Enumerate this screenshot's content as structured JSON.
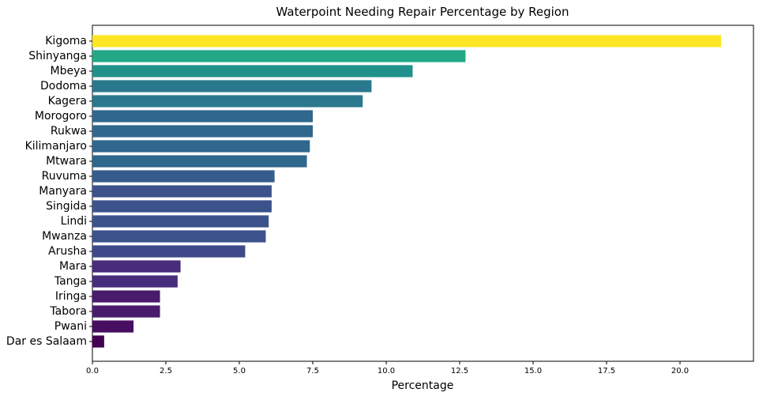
{
  "chart_data": {
    "type": "bar",
    "orientation": "horizontal",
    "title": "Waterpoint Needing Repair Percentage by Region",
    "xlabel": "Percentage",
    "ylabel": "",
    "xlim": [
      0,
      22.5
    ],
    "xticks": [
      "0.0",
      "2.5",
      "5.0",
      "7.5",
      "10.0",
      "12.5",
      "15.0",
      "17.5",
      "20.0"
    ],
    "grid": false,
    "colormap": "viridis",
    "categories": [
      "Kigoma",
      "Shinyanga",
      "Mbeya",
      "Dodoma",
      "Kagera",
      "Morogoro",
      "Rukwa",
      "Kilimanjaro",
      "Mtwara",
      "Ruvuma",
      "Manyara",
      "Singida",
      "Lindi",
      "Mwanza",
      "Arusha",
      "Mara",
      "Tanga",
      "Iringa",
      "Tabora",
      "Pwani",
      "Dar es Salaam"
    ],
    "values": [
      21.4,
      12.7,
      10.9,
      9.5,
      9.2,
      7.5,
      7.5,
      7.4,
      7.3,
      6.2,
      6.1,
      6.1,
      6.0,
      5.9,
      5.2,
      3.0,
      2.9,
      2.3,
      2.3,
      1.4,
      0.4
    ],
    "colors": [
      "#fde725",
      "#22a884",
      "#21918c",
      "#2a788e",
      "#2a788e",
      "#30678d",
      "#30678d",
      "#30678d",
      "#30678d",
      "#365c8d",
      "#3b528b",
      "#3b528b",
      "#3b528b",
      "#3b528b",
      "#3e4989",
      "#472d7b",
      "#472d7b",
      "#481b6d",
      "#481b6d",
      "#470e61",
      "#440154"
    ]
  }
}
